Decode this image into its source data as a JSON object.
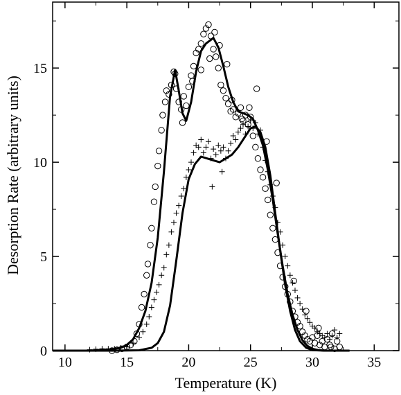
{
  "chart_data": {
    "type": "scatter",
    "title": "",
    "xlabel": "Temperature (K)",
    "ylabel": "Desorption Rate (arbitrary units)",
    "xlim": [
      9,
      37
    ],
    "ylim": [
      0,
      18.5
    ],
    "x_ticks": [
      10,
      15,
      20,
      25,
      30,
      35
    ],
    "y_ticks": [
      0,
      5,
      10,
      15
    ],
    "x_tick_labels": [
      "10",
      "15",
      "20",
      "25",
      "30",
      "35"
    ],
    "y_tick_labels": [
      "0",
      "5",
      "10",
      "15"
    ],
    "grid": false,
    "legend": "none",
    "series": [
      {
        "kind": "points",
        "marker": "circle",
        "color": "#000000",
        "x": [
          13.8,
          14.2,
          14.6,
          15.0,
          15.3,
          15.6,
          15.8,
          16.0,
          16.2,
          16.4,
          16.6,
          16.7,
          16.9,
          17.0,
          17.2,
          17.3,
          17.5,
          17.6,
          17.8,
          17.9,
          18.1,
          18.2,
          18.4,
          18.6,
          18.8,
          19.0,
          19.2,
          19.4,
          19.6,
          19.8,
          20.0,
          20.2,
          20.4,
          20.6,
          20.8,
          21.0,
          21.2,
          21.4,
          21.6,
          21.8,
          22.0,
          22.2,
          22.4,
          22.6,
          22.8,
          23.0,
          23.2,
          23.4,
          23.6,
          23.8,
          24.0,
          24.2,
          24.4,
          24.6,
          24.8,
          25.0,
          25.2,
          25.4,
          25.6,
          25.8,
          26.0,
          26.2,
          26.4,
          26.6,
          26.8,
          27.0,
          27.2,
          27.4,
          27.6,
          27.8,
          28.0,
          28.2,
          28.4,
          28.6,
          28.8,
          29.0,
          29.2,
          29.4,
          29.6,
          29.8,
          30.0,
          30.2,
          30.4,
          30.6,
          30.8,
          31.0,
          31.2,
          31.4,
          31.6,
          31.8,
          32.0,
          32.2,
          21.7,
          22.1,
          22.5,
          23.1,
          24.3,
          25.5,
          26.3,
          27.1,
          28.5,
          29.5,
          30.5,
          31.5,
          21.0,
          20.3,
          19.5,
          18.9,
          23.5,
          24.9
        ],
        "y": [
          0.0,
          0.05,
          0.1,
          0.2,
          0.3,
          0.5,
          0.9,
          1.4,
          2.3,
          3.0,
          4.0,
          4.6,
          5.6,
          6.5,
          7.9,
          8.7,
          9.8,
          10.6,
          11.7,
          12.5,
          13.2,
          13.8,
          13.6,
          14.1,
          14.8,
          13.9,
          13.2,
          12.8,
          13.5,
          13.0,
          14.0,
          14.6,
          15.1,
          15.8,
          16.0,
          16.3,
          16.8,
          17.1,
          17.3,
          16.7,
          16.0,
          15.6,
          15.0,
          14.1,
          13.8,
          13.4,
          13.1,
          12.7,
          12.8,
          12.4,
          12.6,
          12.9,
          12.2,
          12.5,
          12.0,
          12.4,
          11.4,
          10.8,
          10.2,
          9.6,
          9.2,
          8.6,
          8.0,
          7.2,
          6.5,
          5.9,
          5.2,
          4.5,
          3.9,
          3.4,
          3.0,
          2.6,
          2.1,
          1.8,
          1.5,
          1.3,
          1.0,
          0.8,
          0.6,
          0.5,
          0.7,
          0.4,
          0.8,
          0.3,
          0.5,
          0.2,
          0.6,
          0.3,
          0.9,
          0.1,
          0.5,
          0.2,
          15.5,
          16.9,
          16.2,
          15.2,
          12.3,
          13.9,
          11.1,
          8.9,
          3.7,
          2.1,
          1.2,
          0.2,
          14.9,
          14.3,
          12.1,
          14.7,
          13.3,
          12.9
        ]
      },
      {
        "kind": "points",
        "marker": "plus",
        "color": "#000000",
        "x": [
          12.0,
          12.5,
          13.0,
          13.5,
          14.0,
          14.5,
          15.0,
          15.5,
          16.0,
          16.3,
          16.6,
          16.8,
          17.0,
          17.2,
          17.4,
          17.6,
          17.8,
          18.0,
          18.2,
          18.4,
          18.6,
          18.8,
          19.0,
          19.2,
          19.4,
          19.6,
          19.8,
          20.0,
          20.2,
          20.4,
          20.6,
          20.8,
          21.0,
          21.2,
          21.4,
          21.6,
          21.8,
          22.0,
          22.2,
          22.4,
          22.6,
          22.8,
          23.0,
          23.2,
          23.4,
          23.6,
          23.8,
          24.0,
          24.2,
          24.4,
          24.6,
          24.8,
          25.0,
          25.2,
          25.4,
          25.6,
          25.8,
          26.0,
          26.2,
          26.4,
          26.6,
          26.8,
          27.0,
          27.2,
          27.4,
          27.6,
          27.8,
          28.0,
          28.2,
          28.4,
          28.6,
          28.8,
          29.0,
          29.2,
          29.4,
          29.6,
          29.8,
          30.0,
          30.2,
          30.4,
          30.6,
          30.8,
          31.0,
          31.2,
          31.4,
          31.6,
          31.8,
          32.0,
          32.2,
          21.9,
          22.7
        ],
        "y": [
          0.05,
          0.08,
          0.1,
          0.1,
          0.1,
          0.15,
          0.2,
          0.4,
          0.7,
          1.0,
          1.4,
          1.8,
          2.3,
          2.7,
          3.1,
          3.5,
          4.0,
          4.4,
          5.1,
          5.6,
          6.3,
          6.8,
          7.3,
          7.7,
          8.2,
          8.6,
          9.2,
          9.6,
          10.0,
          10.5,
          10.9,
          10.8,
          11.2,
          10.5,
          10.8,
          11.1,
          10.2,
          10.7,
          10.4,
          10.9,
          10.6,
          10.8,
          10.2,
          10.6,
          11.0,
          11.4,
          11.2,
          11.6,
          11.8,
          12.0,
          11.5,
          11.9,
          12.2,
          11.8,
          12.1,
          11.5,
          11.7,
          10.8,
          10.1,
          9.5,
          8.8,
          8.2,
          7.6,
          6.8,
          6.3,
          5.6,
          5.0,
          4.5,
          4.0,
          3.6,
          3.2,
          2.8,
          2.5,
          2.2,
          1.9,
          1.7,
          1.5,
          1.3,
          1.2,
          1.0,
          0.9,
          0.8,
          0.7,
          0.9,
          0.6,
          0.8,
          1.1,
          0.7,
          0.9,
          8.7,
          9.5
        ]
      },
      {
        "kind": "line",
        "color": "#000000",
        "x": [
          9.0,
          12.0,
          13.5,
          14.5,
          15.0,
          15.5,
          16.0,
          16.5,
          17.0,
          17.5,
          18.0,
          18.5,
          18.9,
          19.2,
          19.5,
          19.8,
          20.2,
          20.6,
          21.0,
          21.4,
          21.8,
          22.0,
          22.4,
          22.8,
          23.2,
          23.6,
          24.0,
          24.4,
          24.8,
          25.2,
          25.6,
          26.0,
          26.4,
          26.8,
          27.2,
          27.6,
          28.0,
          28.4,
          28.8,
          29.2,
          29.6,
          30.0,
          30.5,
          31.0,
          32.0,
          33.0
        ],
        "y": [
          0.0,
          0.0,
          0.05,
          0.15,
          0.3,
          0.6,
          1.2,
          2.1,
          3.6,
          6.0,
          9.5,
          13.5,
          14.9,
          13.8,
          12.6,
          12.2,
          13.2,
          14.8,
          15.9,
          16.3,
          16.5,
          16.6,
          16.1,
          15.1,
          14.0,
          13.2,
          12.7,
          12.6,
          12.5,
          12.3,
          11.7,
          10.9,
          9.6,
          8.0,
          6.2,
          4.5,
          3.0,
          1.9,
          1.1,
          0.55,
          0.25,
          0.1,
          0.03,
          0.0,
          0.0,
          0.0
        ]
      },
      {
        "kind": "line",
        "color": "#000000",
        "x": [
          9.0,
          14.0,
          16.0,
          17.0,
          17.5,
          18.0,
          18.5,
          19.0,
          19.5,
          20.0,
          20.5,
          21.0,
          21.5,
          22.0,
          22.5,
          23.0,
          23.5,
          24.0,
          24.5,
          25.0,
          25.4,
          25.8,
          26.2,
          26.6,
          27.0,
          27.4,
          27.8,
          28.2,
          28.6,
          29.0,
          29.5,
          30.0,
          31.0,
          33.0
        ],
        "y": [
          0.0,
          0.0,
          0.02,
          0.15,
          0.4,
          1.0,
          2.4,
          4.8,
          7.3,
          9.1,
          9.9,
          10.3,
          10.2,
          10.1,
          10.0,
          10.2,
          10.4,
          10.8,
          11.3,
          11.8,
          11.9,
          11.6,
          10.8,
          9.3,
          7.3,
          5.3,
          3.5,
          2.1,
          1.1,
          0.5,
          0.15,
          0.03,
          0.0,
          0.0
        ]
      }
    ]
  }
}
